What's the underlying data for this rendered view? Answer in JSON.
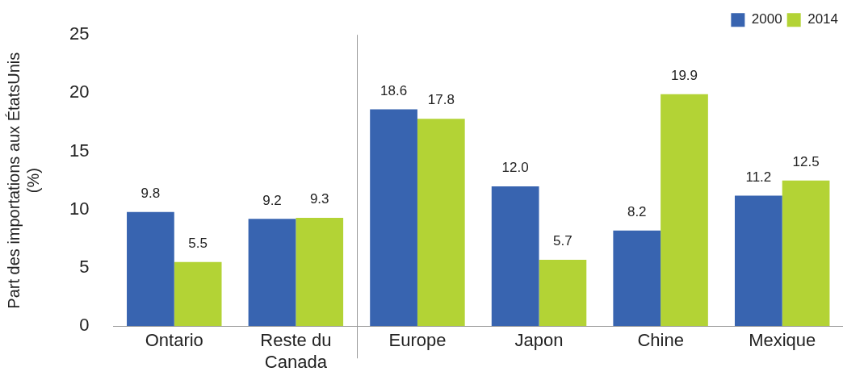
{
  "chart_data": {
    "type": "bar",
    "ylabel": "Part des importations aux ÉtatsUnis (%)",
    "categories": [
      "Ontario",
      "Reste du Canada",
      "Europe",
      "Japon",
      "Chine",
      "Mexique"
    ],
    "series": [
      {
        "name": "2000",
        "color": "#3864b0",
        "values": [
          9.8,
          9.2,
          18.6,
          12.0,
          8.2,
          11.2
        ],
        "value_labels": [
          "9.8",
          "9.2",
          "18.6",
          "12.0",
          "8.2",
          "11.2"
        ]
      },
      {
        "name": "2014",
        "color": "#b3d335",
        "values": [
          5.5,
          9.3,
          17.8,
          5.7,
          19.9,
          12.5
        ],
        "value_labels": [
          "5.5",
          "9.3",
          "17.8",
          "5.7",
          "19.9",
          "12.5"
        ]
      }
    ],
    "ylim": [
      0,
      25
    ],
    "yticks": [
      0,
      5,
      10,
      15,
      20,
      25
    ],
    "grid": false,
    "legend": "top right"
  }
}
